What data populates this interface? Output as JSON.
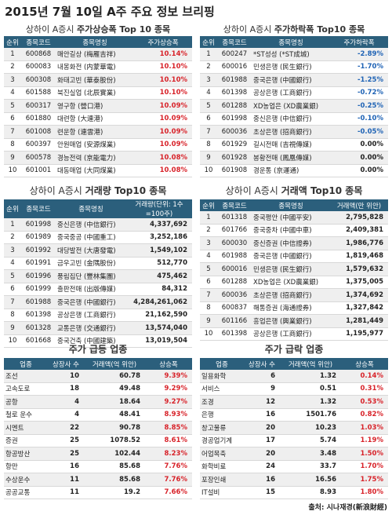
{
  "title": "2015년 7월 10일 A주 주요 정보 브리핑",
  "tables": [
    {
      "title_prefix": "상하이 A증시 ",
      "title_bold": "주가상승폭 Top 10 종목",
      "headers": [
        "순위",
        "종목코드",
        "종목명칭",
        "주가상승폭"
      ],
      "rows": [
        [
          "1",
          "600868",
          "매안길상 (梅雁吉祥)",
          "10.14%"
        ],
        [
          "2",
          "600083",
          "내몽화전 (内蒙華電)",
          "10.10%"
        ],
        [
          "3",
          "600308",
          "화태고빈 (華泰股份)",
          "10.10%"
        ],
        [
          "4",
          "601588",
          "북진실업 (北辰實業)",
          "10.10%"
        ],
        [
          "5",
          "600317",
          "영구항 (營口港)",
          "10.09%"
        ],
        [
          "6",
          "601880",
          "대련항 (大連港)",
          "10.09%"
        ],
        [
          "7",
          "601008",
          "련운항 (連雲港)",
          "10.09%"
        ],
        [
          "8",
          "600397",
          "안원매업 (安源煤業)",
          "10.09%"
        ],
        [
          "9",
          "600578",
          "경능전력 (京能電力)",
          "10.08%"
        ],
        [
          "10",
          "601001",
          "대동매업 (大同煤業)",
          "10.08%"
        ]
      ]
    },
    {
      "title_prefix": "상하이 A증시 ",
      "title_bold": "주가하락폭 Top10 종목",
      "headers": [
        "순위",
        "종목코드",
        "종목명칭",
        "주가하락폭"
      ],
      "rows": [
        [
          "1",
          "600247",
          "*ST성성 (*ST成城)",
          "-2.89%"
        ],
        [
          "2",
          "600016",
          "민생은행 (民生銀行)",
          "-1.70%"
        ],
        [
          "3",
          "601988",
          "중국은행 (中國銀行)",
          "-1.25%"
        ],
        [
          "4",
          "601398",
          "공상은행 (工商銀行)",
          "-0.72%"
        ],
        [
          "5",
          "601288",
          "XD농업은 (XD農業銀)",
          "-0.25%"
        ],
        [
          "6",
          "601998",
          "중신은행 (中信銀行)",
          "-0.10%"
        ],
        [
          "7",
          "600036",
          "초상은행 (招商銀行)",
          "-0.05%"
        ],
        [
          "8",
          "601929",
          "길시전매 (吉視傳媒)",
          "0.00%"
        ],
        [
          "9",
          "601928",
          "봉황전매 (鳳凰傳媒)",
          "0.00%"
        ],
        [
          "10",
          "601908",
          "경운통 (京運通)",
          "0.00%"
        ]
      ]
    },
    {
      "title_prefix": "상하이 A증시 ",
      "title_bold": "거래량 Top10 종목",
      "headers": [
        "순위",
        "종목코드",
        "종목명칭",
        "거래량(단위: 1수=100주)"
      ],
      "rows": [
        [
          "1",
          "601998",
          "중신은행 (中信銀行)",
          "4,337,692"
        ],
        [
          "2",
          "601989",
          "중국중공 (中國重工)",
          "3,252,186"
        ],
        [
          "3",
          "601992",
          "대당발전 (大唐發電)",
          "1,549,102"
        ],
        [
          "4",
          "601991",
          "금우고빈 (金隅股份)",
          "512,770"
        ],
        [
          "5",
          "601996",
          "풍림집단 (豐林集團)",
          "475,462"
        ],
        [
          "6",
          "601999",
          "출판전매 (出版傳媒)",
          "84,312"
        ],
        [
          "7",
          "601988",
          "중국은행 (中國銀行)",
          "4,284,261,062"
        ],
        [
          "8",
          "601398",
          "공상은행 (工商銀行)",
          "21,162,590"
        ],
        [
          "9",
          "601328",
          "교통은행 (交通銀行)",
          "13,574,040"
        ],
        [
          "10",
          "601668",
          "중국건축 (中國建築)",
          "13,019,504"
        ]
      ]
    },
    {
      "title_prefix": "상하이 A증시 ",
      "title_bold": "거래액 Top10 종목",
      "headers": [
        "순위",
        "종목코드",
        "종목명칭",
        "거래액(만 위안)"
      ],
      "rows": [
        [
          "1",
          "601318",
          "중국평안 (中國平安)",
          "2,795,828"
        ],
        [
          "2",
          "601766",
          "중국중차 (中國中車)",
          "2,409,381"
        ],
        [
          "3",
          "600030",
          "중신증권 (中信證券)",
          "1,986,776"
        ],
        [
          "4",
          "601988",
          "중국은행 (中國銀行)",
          "1,819,468"
        ],
        [
          "5",
          "600016",
          "민생은행 (民生銀行)",
          "1,579,632"
        ],
        [
          "6",
          "601288",
          "XD농업은 (XD農業銀)",
          "1,375,005"
        ],
        [
          "7",
          "600036",
          "초상은행 (招商銀行)",
          "1,374,692"
        ],
        [
          "8",
          "600837",
          "해통증권 (海通證券)",
          "1,327,842"
        ],
        [
          "9",
          "601166",
          "흥업은행 (興業銀行)",
          "1,281,449"
        ],
        [
          "10",
          "601398",
          "공상은행 (工商銀行)",
          "1,195,977"
        ]
      ]
    },
    {
      "title_bold": "주가 급등 업종",
      "headers": [
        "업종",
        "상장사 수",
        "거래액(억 위안)",
        "상승폭"
      ],
      "rows": [
        [
          "조선",
          "10",
          "60.78",
          "9.39%"
        ],
        [
          "고속도로",
          "18",
          "49.48",
          "9.29%"
        ],
        [
          "공항",
          "4",
          "18.64",
          "9.27%"
        ],
        [
          "철로 운수",
          "4",
          "48.41",
          "8.93%"
        ],
        [
          "시멘트",
          "22",
          "90.78",
          "8.85%"
        ],
        [
          "증권",
          "25",
          "1078.52",
          "8.61%"
        ],
        [
          "항공방산",
          "25",
          "102.44",
          "8.23%"
        ],
        [
          "항만",
          "16",
          "85.68",
          "7.76%"
        ],
        [
          "수상운수",
          "11",
          "85.68",
          "7.76%"
        ],
        [
          "공공교통",
          "11",
          "19.2",
          "7.66%"
        ]
      ]
    },
    {
      "title_bold": "주가 급락 업종",
      "headers": [
        "업종",
        "상장사 수",
        "거래액(억 위안)",
        "상승폭"
      ],
      "rows": [
        [
          "일용화학",
          "6",
          "1.32",
          "0.14%"
        ],
        [
          "서비스",
          "9",
          "0.51",
          "0.31%"
        ],
        [
          "조경",
          "12",
          "1.32",
          "0.53%"
        ],
        [
          "은행",
          "16",
          "1501.76",
          "0.82%"
        ],
        [
          "창고물류",
          "20",
          "10.23",
          "1.03%"
        ],
        [
          "경공업기계",
          "17",
          "5.74",
          "1.19%"
        ],
        [
          "어업목축",
          "20",
          "3.48",
          "1.50%"
        ],
        [
          "화학비료",
          "24",
          "33.7",
          "1.70%"
        ],
        [
          "포장인쇄",
          "16",
          "16.56",
          "1.75%"
        ],
        [
          "IT설비",
          "15",
          "8.93",
          "1.80%"
        ]
      ]
    }
  ],
  "source": "출처: 시나재경(新浪財經)"
}
